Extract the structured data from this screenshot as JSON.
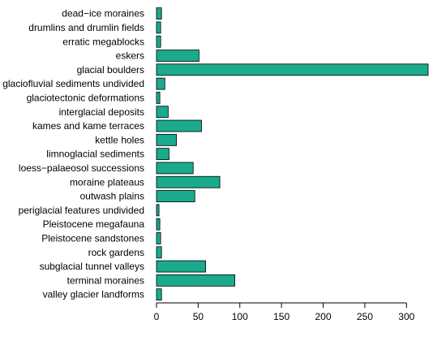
{
  "chart_data": {
    "type": "bar",
    "orientation": "horizontal",
    "categories": [
      "dead−ice moraines",
      "drumlins and drumlin fields",
      "erratic megablocks",
      "eskers",
      "glacial boulders",
      "glaciofluvial sediments undivided",
      "glaciotectonic deformations",
      "interglacial deposits",
      "kames and kame terraces",
      "kettle holes",
      "limnoglacial sediments",
      "loess−palaeosol successions",
      "moraine plateaus",
      "outwash plains",
      "periglacial features undivided",
      "Pleistocene megafauna",
      "Pleistocene sandstones",
      "rock gardens",
      "subglacial tunnel valleys",
      "terminal moraines",
      "valley glacier landforms"
    ],
    "values": [
      6,
      5,
      5,
      51,
      326,
      10,
      4,
      14,
      54,
      24,
      15,
      44,
      76,
      46,
      3,
      4,
      5,
      6,
      59,
      94,
      6
    ],
    "xlim": [
      0,
      326
    ],
    "xticks": [
      0,
      50,
      100,
      150,
      200,
      250,
      300
    ],
    "xtick_labels": [
      "0",
      "50",
      "100",
      "150",
      "200",
      "250",
      "300"
    ],
    "bar_color": "#1aaa8c",
    "grid": false
  }
}
